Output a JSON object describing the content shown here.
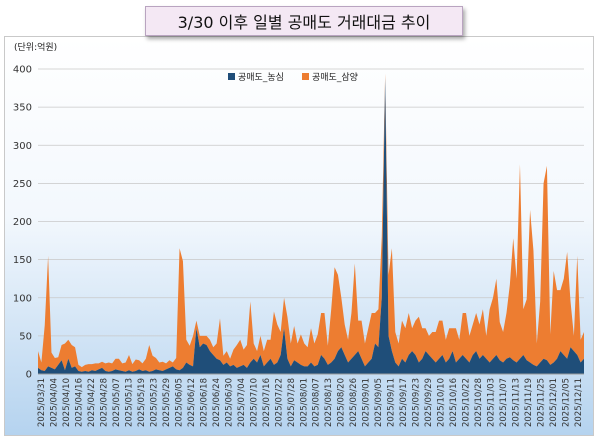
{
  "chart_data": {
    "type": "area",
    "title": "3/30 이후 일별 공매도 거래대금 추이",
    "unit_label": "(단위:억원)",
    "ylim": [
      0,
      400
    ],
    "yticks": [
      0,
      50,
      100,
      150,
      200,
      250,
      300,
      350,
      400
    ],
    "x_tick_labels": [
      "2025/03/31",
      "2025/04/04",
      "2025/04/10",
      "2025/04/16",
      "2025/04/22",
      "2025/04/28",
      "2025/05/07",
      "2025/05/13",
      "2025/05/19",
      "2025/05/23",
      "2025/05/29",
      "2025/06/05",
      "2025/06/12",
      "2025/06/18",
      "2025/06/24",
      "2025/06/30",
      "2025/07/04",
      "2025/07/10",
      "2025/07/16",
      "2025/07/22",
      "2025/07/28",
      "2025/08/01",
      "2025/08/07",
      "2025/08/13",
      "2025/08/20",
      "2025/08/26",
      "2025/09/01",
      "2025/09/05",
      "2025/09/11",
      "2025/09/17",
      "2025/09/23",
      "2025/09/29",
      "2025/10/10",
      "2025/10/16",
      "2025/10/22",
      "2025/10/28",
      "2025/11/03",
      "2025/11/07",
      "2025/11/13",
      "2025/11/19",
      "2025/11/25",
      "2025/12/01",
      "2025/12/05",
      "2025/12/11"
    ],
    "grid": true,
    "legend_position": "top-center",
    "stacked": true,
    "series": [
      {
        "name": "공매도_농심",
        "color": "#1f4e79",
        "values": [
          8,
          5,
          4,
          10,
          8,
          6,
          12,
          18,
          5,
          20,
          8,
          10,
          4,
          3,
          4,
          3,
          5,
          4,
          6,
          8,
          4,
          3,
          4,
          6,
          5,
          4,
          3,
          5,
          3,
          4,
          6,
          4,
          5,
          3,
          4,
          6,
          5,
          4,
          6,
          8,
          10,
          6,
          5,
          8,
          15,
          12,
          10,
          60,
          35,
          40,
          38,
          30,
          25,
          20,
          18,
          12,
          15,
          10,
          12,
          8,
          10,
          12,
          8,
          15,
          20,
          15,
          25,
          10,
          15,
          20,
          12,
          15,
          25,
          60,
          20,
          10,
          18,
          15,
          12,
          10,
          10,
          15,
          10,
          12,
          25,
          20,
          12,
          15,
          20,
          30,
          35,
          25,
          15,
          20,
          25,
          30,
          20,
          10,
          15,
          20,
          40,
          35,
          100,
          389,
          50,
          30,
          15,
          10,
          20,
          15,
          25,
          30,
          25,
          15,
          20,
          30,
          25,
          20,
          15,
          20,
          25,
          15,
          20,
          30,
          15,
          20,
          25,
          20,
          15,
          25,
          30,
          20,
          25,
          20,
          15,
          20,
          25,
          18,
          15,
          20,
          22,
          18,
          15,
          20,
          25,
          18,
          15,
          12,
          10,
          15,
          20,
          18,
          12,
          15,
          20,
          30,
          25,
          20,
          35,
          30,
          25,
          15,
          20
        ]
      },
      {
        "name": "공매도_삼양",
        "color": "#ed7d31",
        "values": [
          22,
          10,
          60,
          145,
          20,
          15,
          10,
          20,
          35,
          25,
          30,
          25,
          8,
          6,
          8,
          10,
          8,
          10,
          8,
          8,
          10,
          12,
          10,
          14,
          15,
          10,
          12,
          20,
          10,
          15,
          12,
          10,
          15,
          35,
          20,
          15,
          10,
          12,
          8,
          10,
          5,
          15,
          160,
          140,
          30,
          25,
          40,
          10,
          15,
          10,
          12,
          15,
          10,
          20,
          55,
          12,
          15,
          10,
          20,
          30,
          35,
          20,
          30,
          80,
          20,
          15,
          25,
          20,
          30,
          25,
          70,
          50,
          30,
          40,
          55,
          30,
          45,
          25,
          40,
          30,
          25,
          45,
          30,
          40,
          55,
          60,
          25,
          70,
          120,
          100,
          65,
          40,
          30,
          60,
          120,
          40,
          50,
          30,
          45,
          60,
          40,
          50,
          80,
          5,
          80,
          135,
          40,
          30,
          50,
          45,
          55,
          30,
          45,
          60,
          40,
          30,
          25,
          35,
          40,
          50,
          45,
          30,
          40,
          30,
          45,
          25,
          55,
          60,
          35,
          40,
          50,
          45,
          60,
          30,
          70,
          80,
          100,
          50,
          40,
          60,
          95,
          160,
          110,
          255,
          60,
          80,
          200,
          150,
          30,
          80,
          230,
          255,
          40,
          120,
          90,
          80,
          100,
          140,
          60,
          20,
          130,
          30,
          35
        ]
      }
    ]
  }
}
